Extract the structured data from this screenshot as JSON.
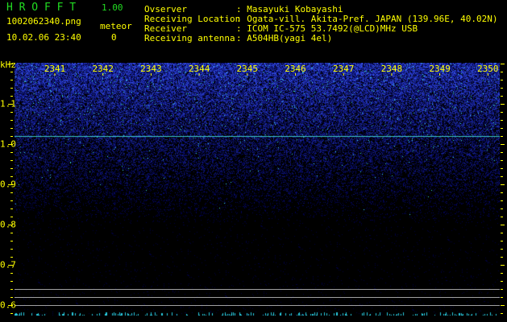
{
  "header": {
    "app_name": "H R O F F T",
    "version": "1.00",
    "filename": "1002062340.png",
    "datetime": "10.02.06 23:40",
    "meteor_label": "meteor",
    "meteor_count": "0",
    "info": [
      {
        "label": "Ovserver",
        "value": ": Masayuki Kobayashi"
      },
      {
        "label": "Receiving Location",
        "value": ": Ogata-vill. Akita-Pref. JAPAN (139.96E, 40.02N)"
      },
      {
        "label": "Receiver",
        "value": ": ICOM IC-575 53.7492(@LCD)MHz USB"
      },
      {
        "label": "Receiving antenna",
        "value": ": A504HB(yagi 4el)"
      }
    ]
  },
  "chart_data": {
    "type": "heatmap",
    "ylabel": "kHz",
    "x_ticks": [
      "2341",
      "2342",
      "2343",
      "2344",
      "2345",
      "2346",
      "2347",
      "2348",
      "2349",
      "2350"
    ],
    "y_ticks": [
      "1.1",
      "1.0",
      "0.9",
      "0.8",
      "0.7",
      "0.6"
    ],
    "ylim": [
      0.57,
      1.2
    ],
    "carrier_line_khz": 1.02,
    "reference_lines_khz": [
      0.62,
      0.6,
      0.58
    ],
    "colors": {
      "background": "#000000",
      "noise": "#1e2cff",
      "signal": "#40e0d0",
      "labels": "#ffff00",
      "reference": "#a0a0a0"
    }
  }
}
